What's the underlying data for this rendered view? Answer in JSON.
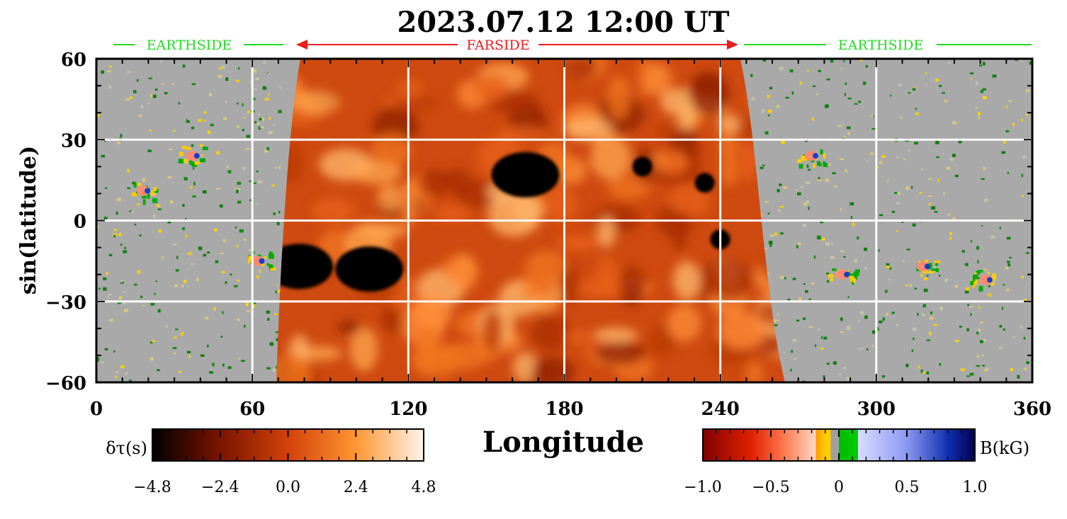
{
  "title": "2023.07.12  12:00  UT",
  "chart_data": {
    "type": "heatmap",
    "title": "2023.07.12  12:00  UT",
    "xlabel": "Longitude",
    "ylabel": "sin(latitude)",
    "xlim": [
      0,
      360
    ],
    "ylim": [
      -60,
      60
    ],
    "x_ticks": [
      "0",
      "60",
      "120",
      "180",
      "240",
      "300",
      "360"
    ],
    "y_ticks": [
      "60",
      "30",
      "0",
      "−30",
      "−60"
    ],
    "grid": true,
    "regions": [
      {
        "name": "EARTHSIDE",
        "lon_range": [
          0,
          72
        ],
        "color": "#22dd22"
      },
      {
        "name": "FARSIDE",
        "lon_range": [
          77,
          246
        ],
        "color": "#ee1c1c"
      },
      {
        "name": "EARTHSIDE",
        "lon_range": [
          250,
          360
        ],
        "color": "#22dd22"
      }
    ],
    "farside_map": {
      "quantity": "δτ(s)",
      "range": [
        -4.8,
        4.8
      ],
      "ticks": [
        "−4.8",
        "−2.4",
        "0.0",
        "2.4",
        "4.8"
      ],
      "colors": [
        "#000000",
        "#7a1400",
        "#d2410a",
        "#ff9633",
        "#fff4ea"
      ],
      "strong_features": [
        {
          "lon": 165,
          "lat": 17,
          "type": "dark region"
        },
        {
          "lon": 105,
          "lat": -18,
          "type": "dark region"
        },
        {
          "lon": 78,
          "lat": -17,
          "type": "dark region"
        },
        {
          "lon": 210,
          "lat": 20,
          "type": "dark spot"
        },
        {
          "lon": 234,
          "lat": 14,
          "type": "dark spot"
        },
        {
          "lon": 240,
          "lat": -7,
          "type": "dark spot"
        }
      ]
    },
    "earthside_map": {
      "quantity": "B(kG)",
      "range": [
        -1.0,
        1.0
      ],
      "ticks": [
        "−1.0",
        "−0.5",
        "0",
        "0.5",
        "1.0"
      ],
      "colors": [
        "#800000",
        "#ff3300",
        "#ffccb0",
        "#ffcc00",
        "#00bb00",
        "#c0c8ff",
        "#000060"
      ],
      "active_regions": [
        {
          "lon": 37,
          "lat": 24
        },
        {
          "lon": 18,
          "lat": 11
        },
        {
          "lon": 62,
          "lat": -15
        },
        {
          "lon": 275,
          "lat": 24
        },
        {
          "lon": 287,
          "lat": -20
        },
        {
          "lon": 318,
          "lat": -17
        },
        {
          "lon": 342,
          "lat": -22
        }
      ]
    }
  },
  "colorbar_left": {
    "label": "δτ(s)",
    "ticks": [
      "−4.8",
      "−2.4",
      "0.0",
      "2.4",
      "4.8"
    ]
  },
  "colorbar_right": {
    "label": "B(kG)",
    "ticks": [
      "−1.0",
      "−0.5",
      "0",
      "0.5",
      "1.0"
    ]
  }
}
